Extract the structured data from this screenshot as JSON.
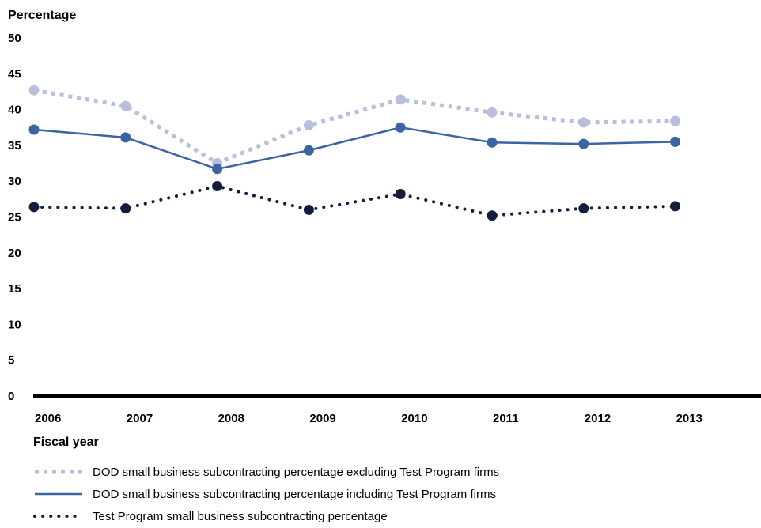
{
  "chart_data": {
    "type": "line",
    "title": "",
    "ylabel": "Percentage",
    "xlabel": "Fiscal year",
    "ylim": [
      0,
      50
    ],
    "yticks": [
      0,
      5,
      10,
      15,
      20,
      25,
      30,
      35,
      40,
      45,
      50
    ],
    "categories": [
      "2006",
      "2007",
      "2008",
      "2009",
      "2010",
      "2011",
      "2012",
      "2013"
    ],
    "grid": false,
    "legend_position": "bottom",
    "series": [
      {
        "name": "DOD small business subcontracting percentage excluding Test Program firms",
        "values": [
          42.7,
          40.5,
          32.5,
          37.8,
          41.4,
          39.6,
          38.2,
          38.4
        ],
        "color": "#b9bedb",
        "style": "dotted-thick"
      },
      {
        "name": "DOD small business subcontracting percentage including Test Program firms",
        "values": [
          37.2,
          36.1,
          31.7,
          34.3,
          37.5,
          35.4,
          35.2,
          35.5
        ],
        "color": "#3a65a2",
        "style": "solid"
      },
      {
        "name": "Test Program small business subcontracting percentage",
        "values": [
          26.4,
          26.2,
          29.3,
          26.0,
          28.2,
          25.2,
          26.2,
          26.5
        ],
        "color": "#141d3b",
        "style": "dotted"
      }
    ]
  }
}
